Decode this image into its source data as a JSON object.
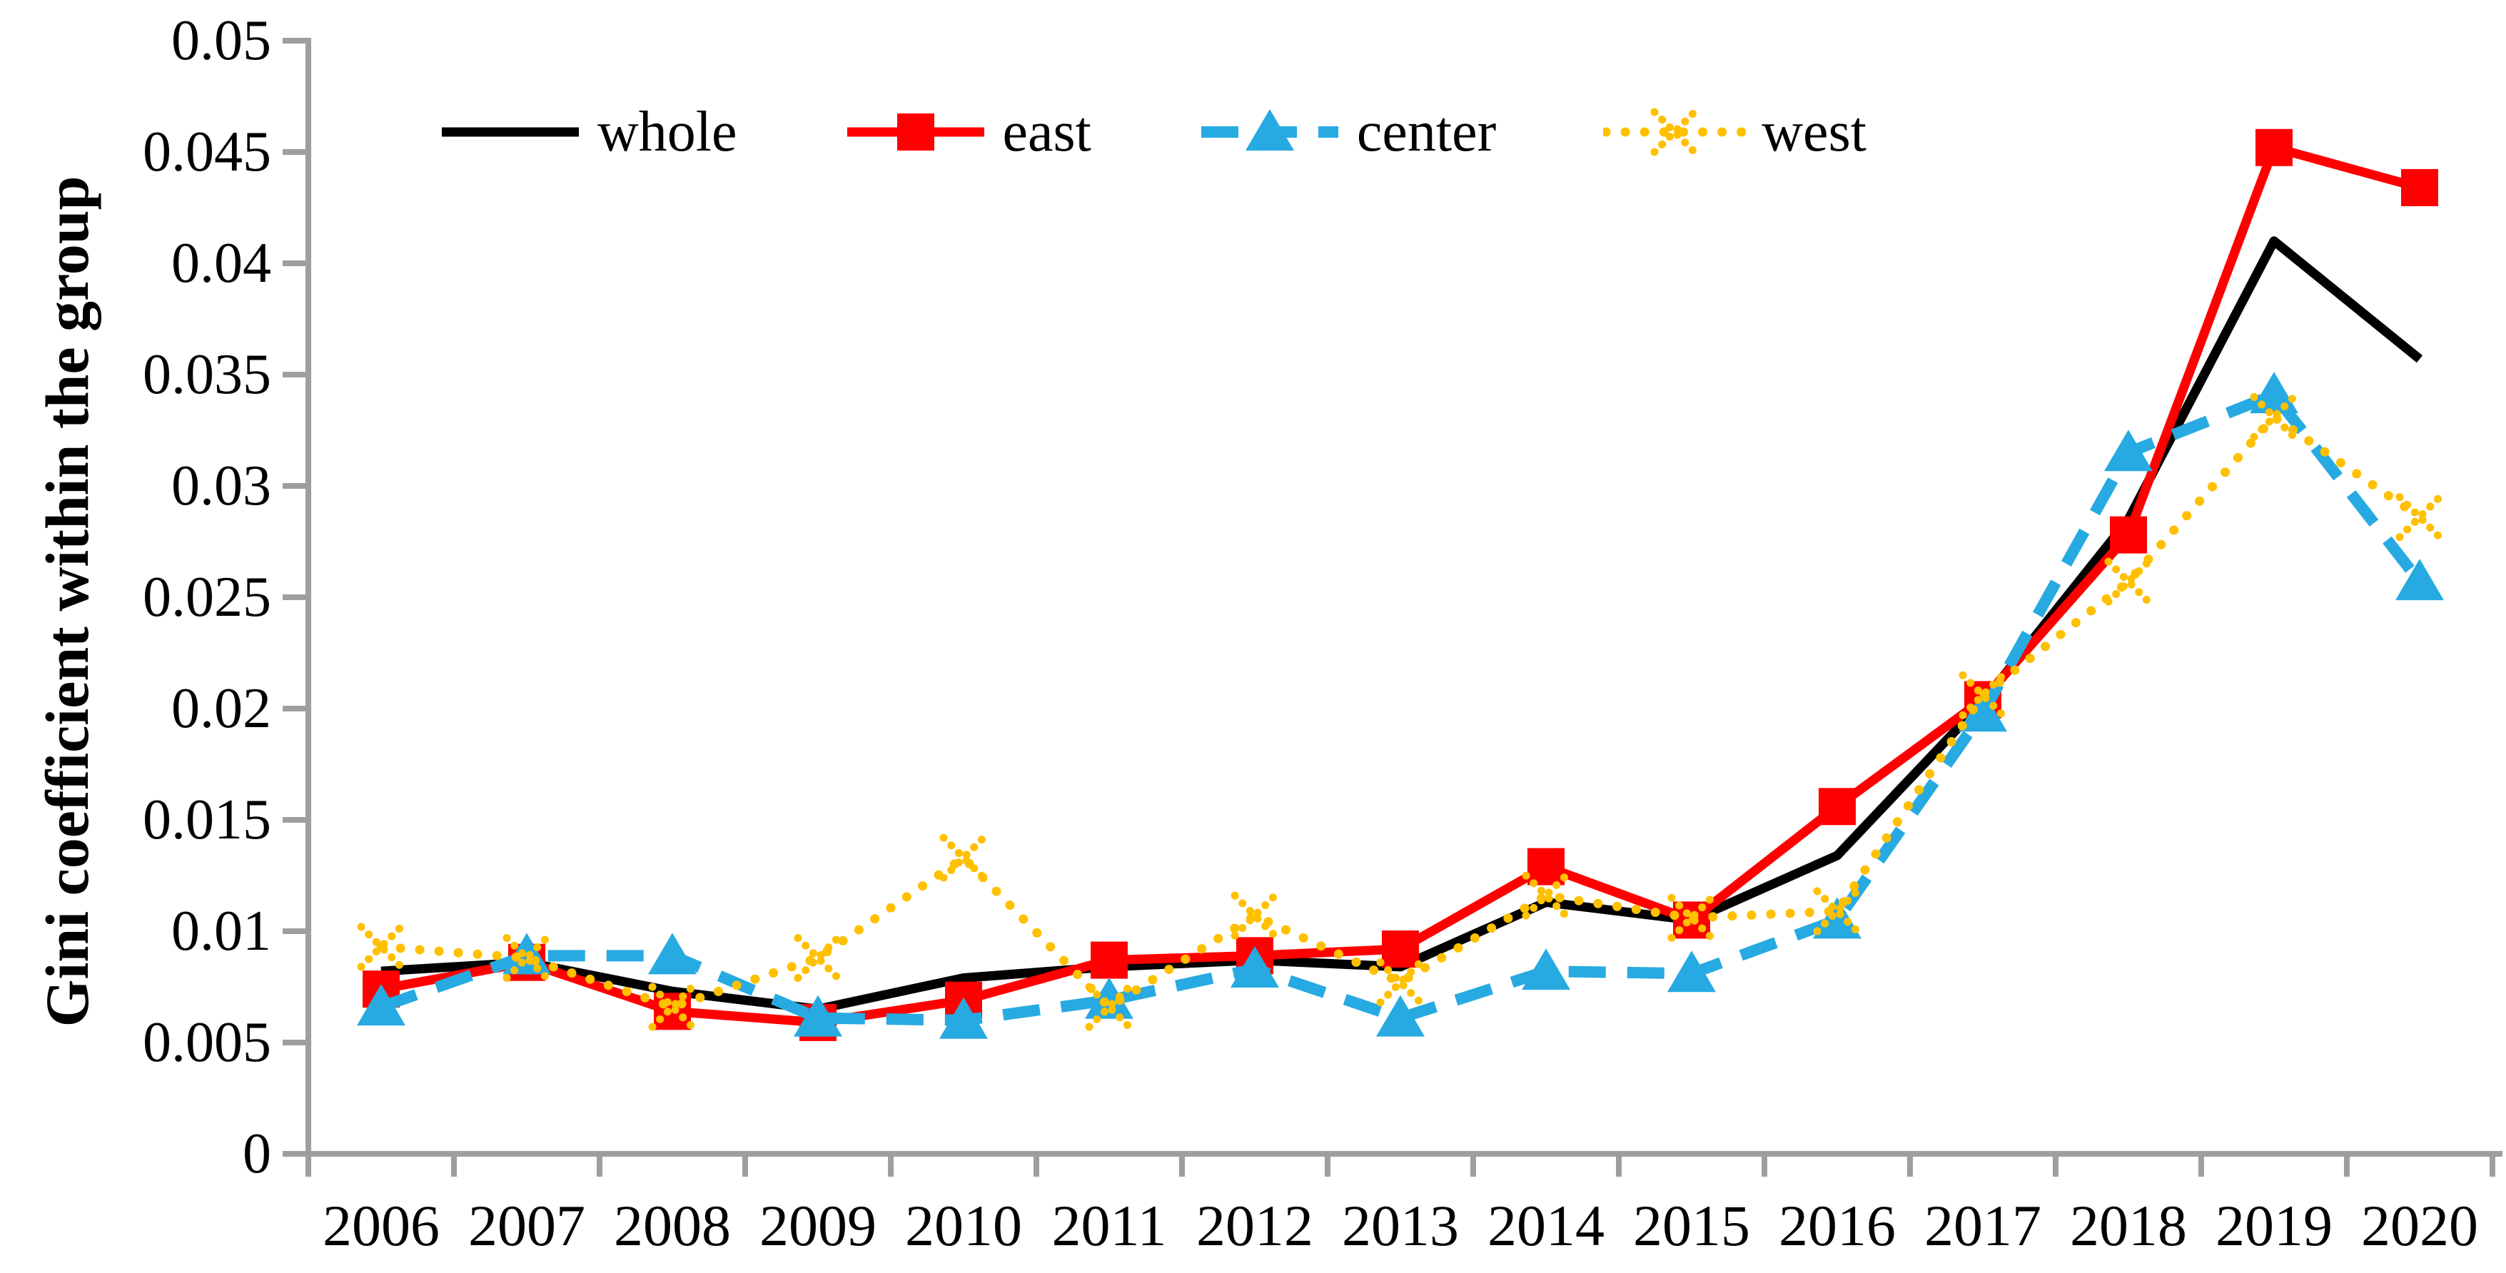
{
  "chart_data": {
    "type": "line",
    "title": "",
    "xlabel": "",
    "ylabel": "Gini coefficient within the group",
    "x": [
      2006,
      2007,
      2008,
      2009,
      2010,
      2011,
      2012,
      2013,
      2014,
      2015,
      2016,
      2017,
      2018,
      2019,
      2020
    ],
    "ylim": [
      0,
      0.05
    ],
    "yticks": [
      "0",
      "0.005",
      "0.01",
      "0.015",
      "0.02",
      "0.025",
      "0.03",
      "0.035",
      "0.04",
      "0.045",
      "0.05"
    ],
    "ytick_values": [
      0,
      0.005,
      0.01,
      0.015,
      0.02,
      0.025,
      0.03,
      0.035,
      0.04,
      0.045,
      0.05
    ],
    "grid": false,
    "legend_position": "top",
    "axis_color": "#9e9e9e",
    "series": [
      {
        "name": "whole",
        "color": "#000000",
        "line_style": "solid",
        "marker": "none",
        "values": [
          0.0082,
          0.0086,
          0.0073,
          0.0065,
          0.0079,
          0.0084,
          0.0087,
          0.0084,
          0.0113,
          0.0105,
          0.0134,
          0.0203,
          0.0285,
          0.041,
          0.0357
        ]
      },
      {
        "name": "east",
        "color": "#ff0000",
        "line_style": "solid",
        "marker": "square",
        "values": [
          0.0074,
          0.0086,
          0.0064,
          0.0059,
          0.0069,
          0.0087,
          0.0089,
          0.0092,
          0.0129,
          0.0105,
          0.0156,
          0.0204,
          0.0278,
          0.0452,
          0.0434
        ]
      },
      {
        "name": "center",
        "color": "#27aae1",
        "line_style": "dashed",
        "marker": "triangle",
        "values": [
          0.0066,
          0.0089,
          0.0089,
          0.0061,
          0.006,
          0.0069,
          0.0083,
          0.0061,
          0.0082,
          0.0081,
          0.0105,
          0.0198,
          0.0315,
          0.0341,
          0.0257
        ]
      },
      {
        "name": "west",
        "color": "#ffc000",
        "line_style": "dotted",
        "marker": "x",
        "values": [
          0.0093,
          0.0088,
          0.0066,
          0.0088,
          0.0133,
          0.0066,
          0.0107,
          0.0077,
          0.0116,
          0.0106,
          0.0109,
          0.0206,
          0.0257,
          0.0331,
          0.0286
        ]
      }
    ]
  }
}
